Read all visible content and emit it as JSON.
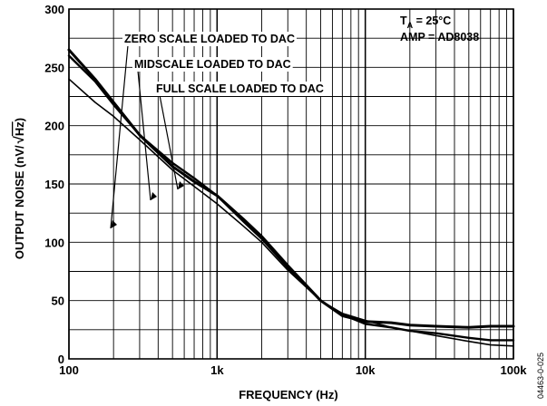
{
  "chart_data": {
    "type": "line",
    "x_scale": "log",
    "xlabel": "FREQUENCY (Hz)",
    "ylabel_main": "OUTPUT NOISE (nV/",
    "ylabel_radicand": "Hz",
    "ylabel_close": ")",
    "xlim": [
      100,
      100000
    ],
    "ylim": [
      0,
      300
    ],
    "grid": true,
    "x_ticks": [
      "100",
      "1k",
      "10k",
      "100k"
    ],
    "y_ticks": [
      "0",
      "50",
      "100",
      "150",
      "200",
      "250",
      "300"
    ],
    "conditions": {
      "ta_prefix": "T",
      "ta_sub": "A",
      "ta_value": " = 25°C",
      "amp": "AMP = AD8038"
    },
    "figure_id": "04463-0-025",
    "series": [
      {
        "name": "ZERO SCALE LOADED TO DAC",
        "x": [
          100,
          150,
          200,
          300,
          500,
          700,
          1000,
          1500,
          2000,
          3000,
          5000,
          7000,
          10000,
          15000,
          20000,
          30000,
          50000,
          70000,
          100000
        ],
        "y": [
          265,
          240,
          220,
          192,
          165,
          152,
          140,
          120,
          105,
          80,
          50,
          37,
          32,
          31,
          29,
          28,
          27,
          28,
          28
        ]
      },
      {
        "name": "MIDSCALE LOADED TO DAC",
        "x": [
          100,
          150,
          200,
          300,
          500,
          700,
          1000,
          1500,
          2000,
          3000,
          5000,
          7000,
          10000,
          15000,
          20000,
          30000,
          50000,
          70000,
          100000
        ],
        "y": [
          260,
          238,
          218,
          192,
          168,
          155,
          140,
          118,
          103,
          78,
          50,
          38,
          30,
          27,
          24,
          22,
          18,
          16,
          16
        ]
      },
      {
        "name": "FULL SCALE LOADED TO DAC",
        "x": [
          100,
          150,
          200,
          300,
          500,
          700,
          1000,
          1500,
          2000,
          3000,
          5000,
          7000,
          10000,
          15000,
          20000,
          30000,
          50000,
          70000,
          100000
        ],
        "y": [
          240,
          220,
          208,
          188,
          162,
          148,
          133,
          114,
          100,
          76,
          50,
          39,
          33,
          27,
          24,
          20,
          15,
          12,
          11
        ]
      }
    ],
    "annotations": [
      {
        "text": "ZERO SCALE LOADED TO DAC",
        "series": 0
      },
      {
        "text": "MIDSCALE LOADED TO DAC",
        "series": 1
      },
      {
        "text": "FULL SCALE LOADED TO DAC",
        "series": 2
      }
    ]
  }
}
